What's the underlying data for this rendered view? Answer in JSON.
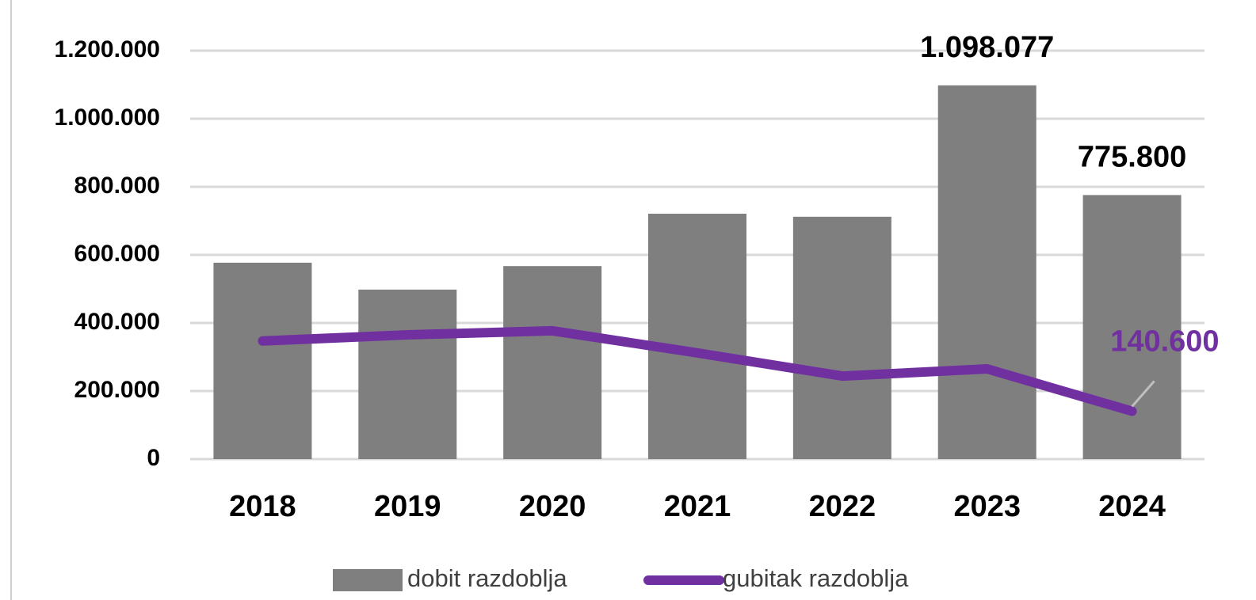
{
  "chart_data": {
    "type": "bar-line",
    "categories": [
      "2018",
      "2019",
      "2020",
      "2021",
      "2022",
      "2023",
      "2024"
    ],
    "series": [
      {
        "name": "dobit razdoblja",
        "type": "bar",
        "color": "#7f7f7f",
        "values": [
          577000,
          498000,
          567000,
          721000,
          712000,
          1098077,
          775800
        ],
        "value_labels": [
          null,
          null,
          null,
          null,
          null,
          "1.098.077",
          "775.800"
        ]
      },
      {
        "name": "gubitak razdoblja",
        "type": "line",
        "color": "#7030a0",
        "values": [
          347000,
          365000,
          377000,
          312000,
          244000,
          265000,
          140600
        ],
        "value_labels": [
          null,
          null,
          null,
          null,
          null,
          null,
          "140.600"
        ]
      }
    ],
    "ylim": [
      0,
      1200000
    ],
    "yticks": [
      0,
      {
        "value": 200000,
        "label": "200.000"
      },
      {
        "value": 400000,
        "label": "400.000"
      },
      {
        "value": 600000,
        "label": "600.000"
      },
      {
        "value": 800000,
        "label": "800.000"
      },
      {
        "value": 1000000,
        "label": "1.000.000"
      },
      {
        "value": 1200000,
        "label": "1.200.000"
      }
    ],
    "grid": true,
    "legend": "bottom"
  }
}
